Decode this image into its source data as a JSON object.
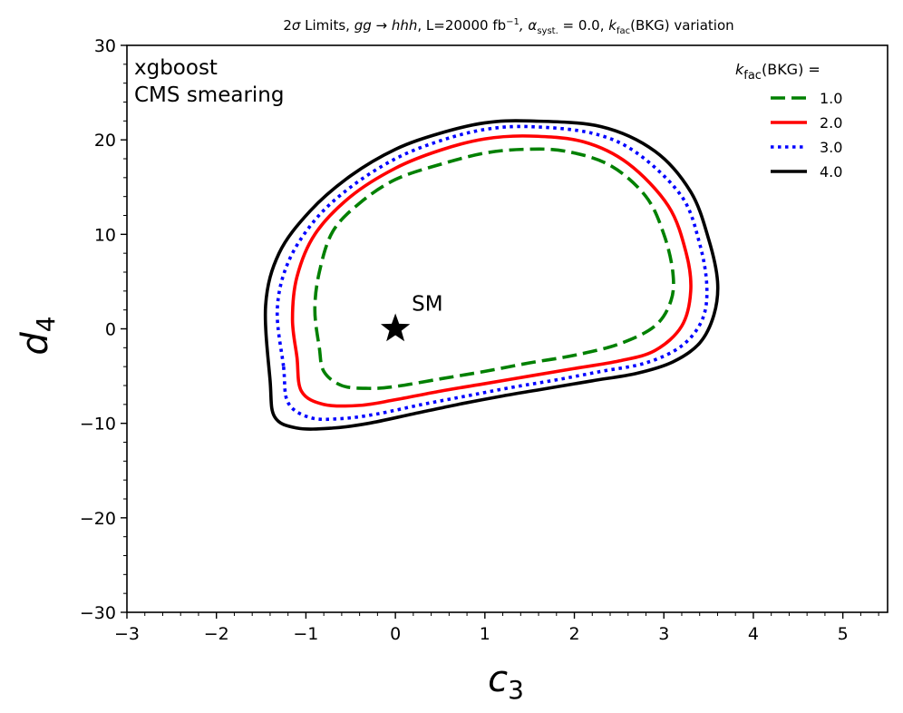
{
  "chart_data": {
    "type": "line",
    "title": "2σ Limits, gg→hhh, L=20000 fb⁻¹, α_syst. = 0.0, k_fac(BKG) variation",
    "title_parts": {
      "prefix": "2",
      "sigma": "σ",
      "limits": " Limits, ",
      "process": "gg → hhh",
      "lumi": ", L=20000 fb",
      "lumi_exp": "−1",
      "alpha": ", α",
      "alpha_sub": "syst.",
      "alpha_val": " = 0.0, ",
      "k": "k",
      "k_sub": "fac",
      "k_rest": "(BKG) variation"
    },
    "xlabel": "c",
    "xlabel_sub": "3",
    "ylabel": "d",
    "ylabel_sub": "4",
    "xlim": [
      -3,
      5.5
    ],
    "ylim": [
      -30,
      30
    ],
    "xticks": [
      -3,
      -2,
      -1,
      0,
      1,
      2,
      3,
      4,
      5
    ],
    "xtick_labels": [
      "−3",
      "−2",
      "−1",
      "0",
      "1",
      "2",
      "3",
      "4",
      "5"
    ],
    "yticks": [
      -30,
      -20,
      -10,
      0,
      10,
      20,
      30
    ],
    "ytick_labels": [
      "−30",
      "−20",
      "−10",
      "0",
      "10",
      "20",
      "30"
    ],
    "grid": false,
    "legend_placement": "top-right",
    "legend_title": {
      "k": "k",
      "sub": "fac",
      "rest": "(BKG) ="
    },
    "annotations": [
      "xgboost",
      "CMS smearing"
    ],
    "marker": {
      "label": "SM",
      "x": 0,
      "y": 0,
      "shape": "star"
    },
    "series": [
      {
        "name": "1.0",
        "color": "#008000",
        "style": "dashed",
        "points": [
          [
            -0.85,
            -2
          ],
          [
            -0.8,
            -4.5
          ],
          [
            -0.6,
            -6
          ],
          [
            -0.3,
            -6.3
          ],
          [
            0,
            -6.1
          ],
          [
            0.5,
            -5.3
          ],
          [
            1,
            -4.5
          ],
          [
            1.5,
            -3.6
          ],
          [
            2,
            -2.8
          ],
          [
            2.5,
            -1.6
          ],
          [
            2.9,
            0.3
          ],
          [
            3.08,
            3
          ],
          [
            3.1,
            6
          ],
          [
            3.0,
            10
          ],
          [
            2.8,
            14
          ],
          [
            2.4,
            17.3
          ],
          [
            1.9,
            18.8
          ],
          [
            1.45,
            19
          ],
          [
            1,
            18.6
          ],
          [
            0.5,
            17.4
          ],
          [
            0,
            15.8
          ],
          [
            -0.4,
            13.3
          ],
          [
            -0.7,
            10.3
          ],
          [
            -0.85,
            6
          ],
          [
            -0.9,
            2
          ],
          [
            -0.85,
            -2
          ]
        ]
      },
      {
        "name": "2.0",
        "color": "#ff0000",
        "style": "solid",
        "points": [
          [
            -1.1,
            -3
          ],
          [
            -1.05,
            -6.6
          ],
          [
            -0.8,
            -8
          ],
          [
            -0.4,
            -8.1
          ],
          [
            0,
            -7.5
          ],
          [
            0.5,
            -6.6
          ],
          [
            1,
            -5.8
          ],
          [
            1.5,
            -5
          ],
          [
            2,
            -4.2
          ],
          [
            2.5,
            -3.4
          ],
          [
            2.9,
            -2.3
          ],
          [
            3.2,
            0.3
          ],
          [
            3.3,
            4
          ],
          [
            3.25,
            8
          ],
          [
            3.05,
            13
          ],
          [
            2.6,
            17.5
          ],
          [
            2.1,
            19.8
          ],
          [
            1.5,
            20.4
          ],
          [
            1,
            20.1
          ],
          [
            0.5,
            18.9
          ],
          [
            0,
            17
          ],
          [
            -0.5,
            14
          ],
          [
            -0.9,
            10
          ],
          [
            -1.1,
            5.5
          ],
          [
            -1.15,
            1
          ],
          [
            -1.1,
            -3
          ]
        ]
      },
      {
        "name": "3.0",
        "color": "#0000ff",
        "style": "dotted",
        "points": [
          [
            -1.25,
            -4
          ],
          [
            -1.2,
            -7.8
          ],
          [
            -0.95,
            -9.4
          ],
          [
            -0.6,
            -9.5
          ],
          [
            -0.2,
            -9
          ],
          [
            0.3,
            -8
          ],
          [
            0.8,
            -7.1
          ],
          [
            1.3,
            -6.2
          ],
          [
            1.8,
            -5.4
          ],
          [
            2.3,
            -4.5
          ],
          [
            2.8,
            -3.6
          ],
          [
            3.2,
            -1.8
          ],
          [
            3.43,
            1
          ],
          [
            3.48,
            4.5
          ],
          [
            3.4,
            9
          ],
          [
            3.2,
            14
          ],
          [
            2.7,
            18.6
          ],
          [
            2.2,
            20.7
          ],
          [
            1.5,
            21.4
          ],
          [
            1,
            21.1
          ],
          [
            0.5,
            19.9
          ],
          [
            0,
            18
          ],
          [
            -0.5,
            15
          ],
          [
            -0.9,
            11.5
          ],
          [
            -1.2,
            7
          ],
          [
            -1.32,
            2
          ],
          [
            -1.25,
            -4
          ]
        ]
      },
      {
        "name": "4.0",
        "color": "#000000",
        "style": "solid",
        "points": [
          [
            -1.4,
            -5.5
          ],
          [
            -1.35,
            -9.3
          ],
          [
            -1.1,
            -10.5
          ],
          [
            -0.7,
            -10.5
          ],
          [
            -0.3,
            -10
          ],
          [
            0.2,
            -9
          ],
          [
            0.7,
            -8
          ],
          [
            1.2,
            -7.1
          ],
          [
            1.7,
            -6.3
          ],
          [
            2.2,
            -5.5
          ],
          [
            2.7,
            -4.7
          ],
          [
            3.1,
            -3.5
          ],
          [
            3.4,
            -1.5
          ],
          [
            3.56,
            1.5
          ],
          [
            3.6,
            5
          ],
          [
            3.5,
            9.5
          ],
          [
            3.3,
            14.5
          ],
          [
            2.9,
            18.8
          ],
          [
            2.3,
            21.4
          ],
          [
            1.5,
            22
          ],
          [
            1,
            21.8
          ],
          [
            0.5,
            20.7
          ],
          [
            0,
            19
          ],
          [
            -0.5,
            16.2
          ],
          [
            -0.95,
            12.5
          ],
          [
            -1.3,
            8
          ],
          [
            -1.45,
            2.5
          ],
          [
            -1.4,
            -5.5
          ]
        ]
      }
    ]
  }
}
